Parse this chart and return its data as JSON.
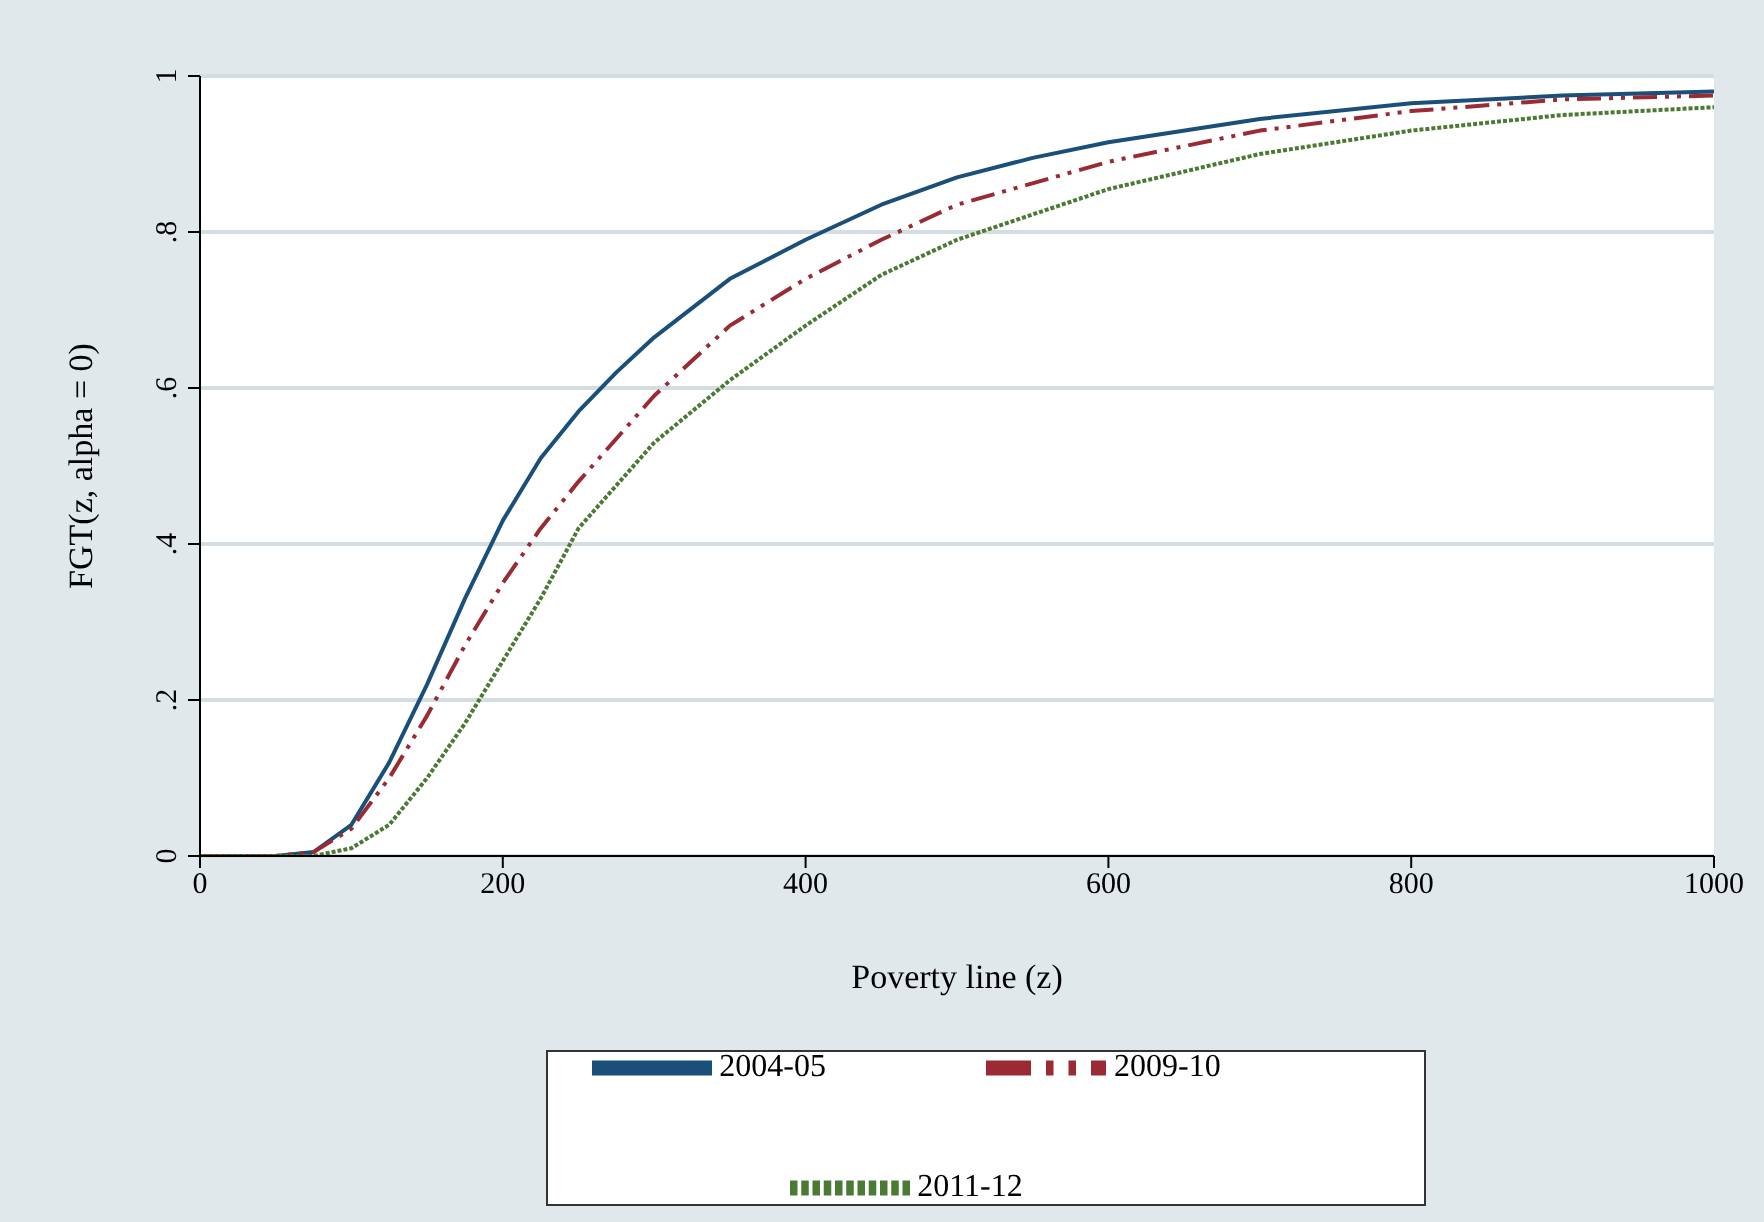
{
  "chart_data": {
    "type": "line",
    "xlabel": "Poverty line (z)",
    "ylabel": "FGT(z, alpha = 0)",
    "xlim": [
      0,
      1000
    ],
    "xticks": [
      0,
      200,
      400,
      600,
      800,
      1000
    ],
    "ylim": [
      0,
      1
    ],
    "yticks": [
      0,
      {
        "value": 0.2,
        "label": ".2"
      },
      {
        "value": 0.4,
        "label": ".4"
      },
      {
        "value": 0.6,
        "label": ".6"
      },
      {
        "value": 0.8,
        "label": ".8"
      },
      1
    ],
    "grid": "y",
    "legend": "bottom",
    "marker": "none",
    "series": [
      {
        "name": "2004-05",
        "color": "#1a4f7a",
        "line_style": "solid",
        "x": [
          0,
          50,
          75,
          100,
          125,
          150,
          175,
          200,
          225,
          250,
          275,
          300,
          350,
          400,
          450,
          500,
          550,
          600,
          700,
          800,
          900,
          1000
        ],
        "values": [
          0,
          0,
          0.005,
          0.04,
          0.12,
          0.22,
          0.33,
          0.43,
          0.51,
          0.57,
          0.62,
          0.665,
          0.74,
          0.79,
          0.835,
          0.87,
          0.895,
          0.915,
          0.945,
          0.965,
          0.975,
          0.98
        ]
      },
      {
        "name": "2009-10",
        "color": "#9a2b35",
        "line_style": "dashed",
        "x": [
          0,
          50,
          75,
          100,
          125,
          150,
          175,
          200,
          225,
          250,
          300,
          350,
          400,
          450,
          500,
          600,
          700,
          800,
          900,
          1000
        ],
        "values": [
          0,
          0,
          0.005,
          0.035,
          0.1,
          0.18,
          0.27,
          0.35,
          0.42,
          0.48,
          0.59,
          0.68,
          0.74,
          0.79,
          0.835,
          0.89,
          0.93,
          0.955,
          0.97,
          0.975
        ]
      },
      {
        "name": "2011-12",
        "color": "#4a7a34",
        "line_style": "dotted",
        "x": [
          0,
          50,
          75,
          100,
          125,
          150,
          175,
          200,
          225,
          250,
          300,
          350,
          400,
          450,
          500,
          600,
          700,
          800,
          900,
          1000
        ],
        "values": [
          0,
          0,
          0,
          0.01,
          0.04,
          0.1,
          0.17,
          0.25,
          0.33,
          0.42,
          0.53,
          0.61,
          0.68,
          0.745,
          0.79,
          0.855,
          0.9,
          0.93,
          0.95,
          0.96
        ]
      }
    ]
  }
}
